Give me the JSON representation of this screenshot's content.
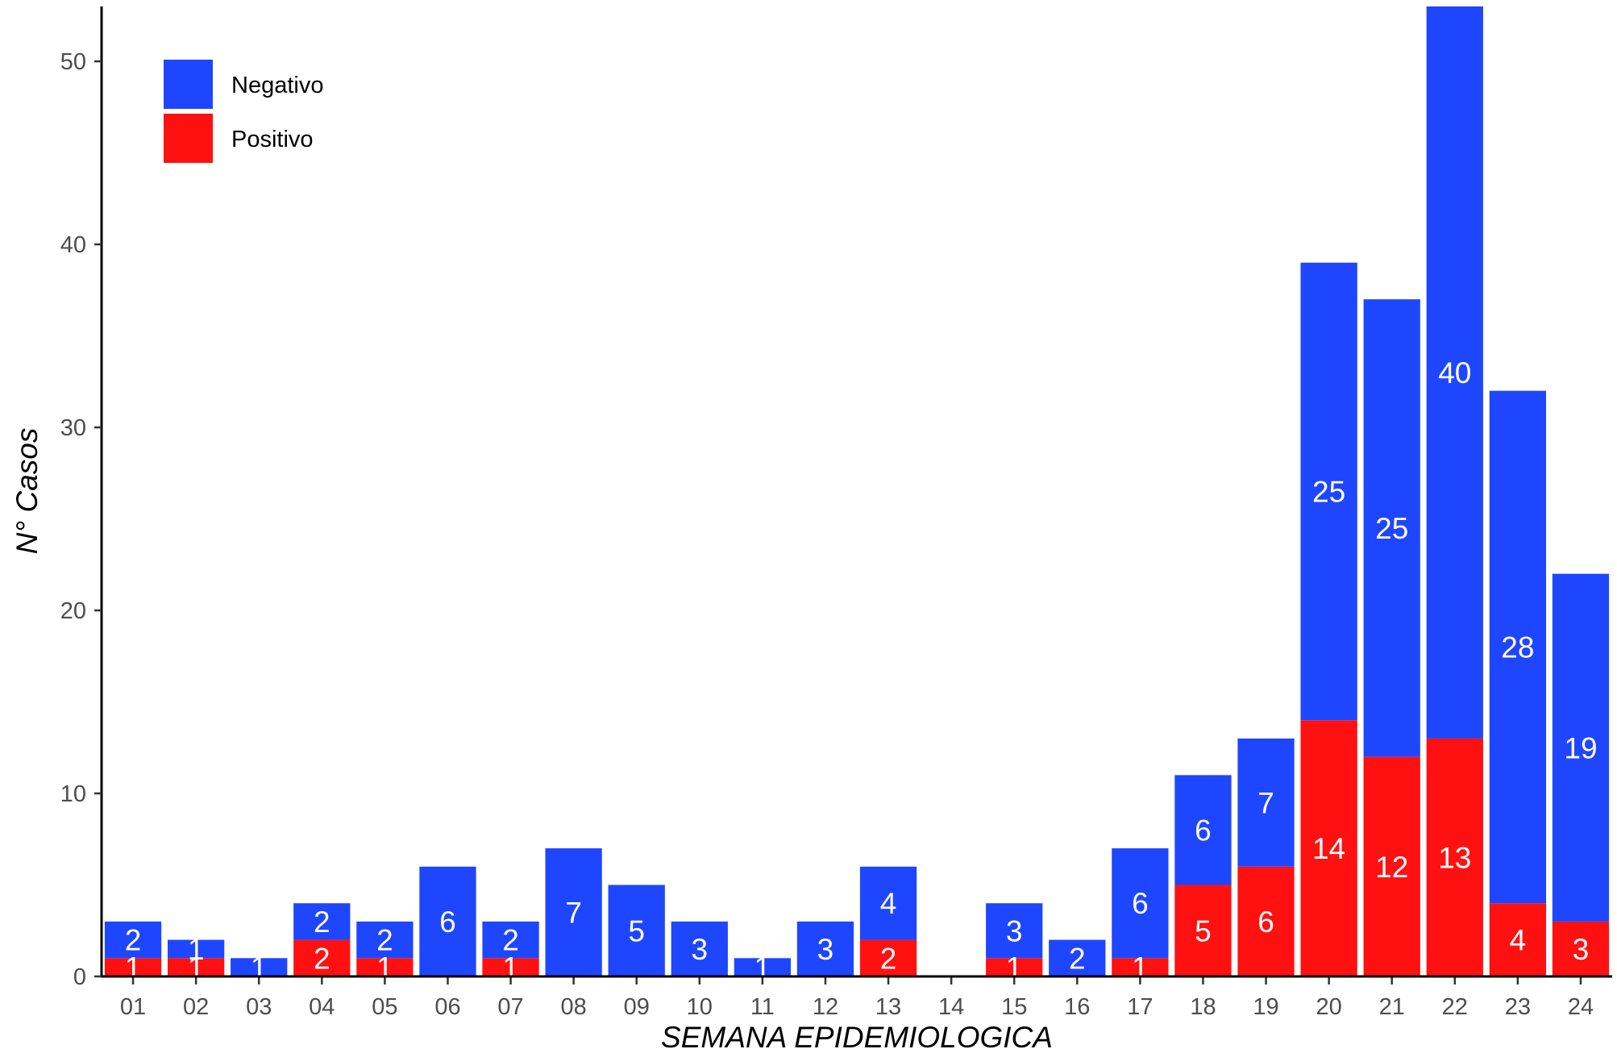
{
  "chart_data": {
    "type": "bar",
    "stacked": true,
    "xlabel": "SEMANA EPIDEMIOLOGICA",
    "ylabel": "N° Casos",
    "ylim": [
      0,
      53
    ],
    "yticks": [
      0,
      10,
      20,
      30,
      40,
      50
    ],
    "grid": false,
    "legend_position": "top-left",
    "categories": [
      "01",
      "02",
      "03",
      "04",
      "05",
      "06",
      "07",
      "08",
      "09",
      "10",
      "11",
      "12",
      "13",
      "14",
      "15",
      "16",
      "17",
      "18",
      "19",
      "20",
      "21",
      "22",
      "23",
      "24"
    ],
    "series": [
      {
        "name": "Positivo",
        "color": "#ff1111",
        "values": [
          1,
          1,
          0,
          2,
          1,
          0,
          1,
          0,
          0,
          0,
          0,
          0,
          2,
          0,
          1,
          0,
          1,
          5,
          6,
          14,
          12,
          13,
          4,
          3
        ]
      },
      {
        "name": "Negativo",
        "color": "#1f46ff",
        "values": [
          2,
          1,
          1,
          2,
          2,
          6,
          2,
          7,
          5,
          3,
          1,
          3,
          4,
          0,
          3,
          2,
          6,
          6,
          7,
          25,
          25,
          40,
          28,
          19
        ]
      }
    ]
  }
}
